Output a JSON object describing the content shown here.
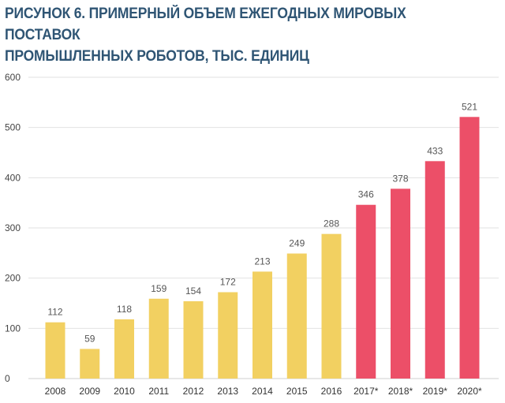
{
  "title_line1": "РИСУНОК 6. ПРИМЕРНЫЙ ОБЪЕМ ЕЖЕГОДНЫХ МИРОВЫХ ПОСТАВОК",
  "title_line2": "ПРОМЫШЛЕННЫХ РОБОТОВ, ТЫС. ЕДИНИЦ",
  "colors": {
    "actual": "#f2d061",
    "forecast": "#ec4f68",
    "grid": "#e2e2e2"
  },
  "chart_data": {
    "type": "bar",
    "categories": [
      "2008",
      "2009",
      "2010",
      "2011",
      "2012",
      "2013",
      "2014",
      "2015",
      "2016",
      "2017*",
      "2018*",
      "2019*",
      "2020*"
    ],
    "values": [
      112,
      59,
      118,
      159,
      154,
      172,
      213,
      249,
      288,
      346,
      378,
      433,
      521
    ],
    "forecast_from_index": 9,
    "ylim": [
      0,
      600
    ],
    "yticks": [
      0,
      100,
      200,
      300,
      400,
      500,
      600
    ],
    "grid": true,
    "xlabel": "",
    "ylabel": ""
  }
}
